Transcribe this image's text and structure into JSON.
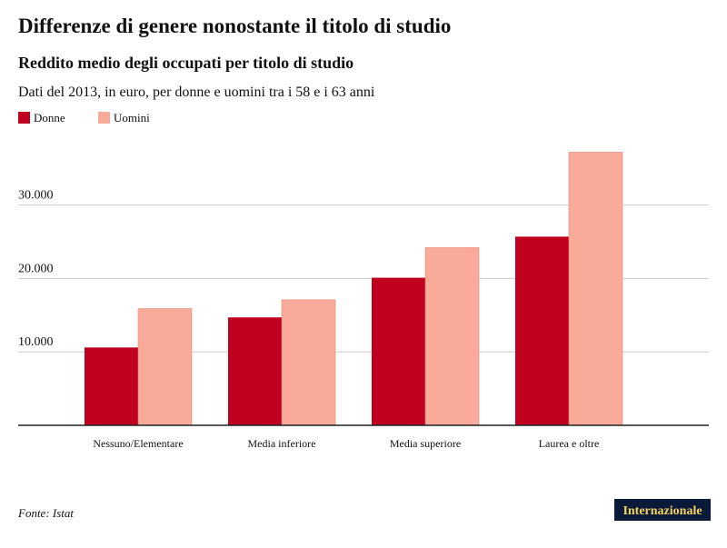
{
  "chart_data": {
    "type": "bar",
    "title": "Differenze di genere nonostante il titolo di studio",
    "subtitle": "Reddito medio degli occupati per titolo di studio",
    "description": "Dati del 2013, in euro, per donne e uomini tra i 58 e i 63 anni",
    "source": "Fonte: Istat",
    "brand": "Internazionale",
    "categories": [
      "Nessuno/Elementare",
      "Media inferiore",
      "Media superiore",
      "Laurea e oltre"
    ],
    "series": [
      {
        "name": "Donne",
        "color": "#c0001f",
        "values": [
          10600,
          14700,
          20100,
          25700
        ]
      },
      {
        "name": "Uomini",
        "color": "#f9aa98",
        "values": [
          15900,
          17100,
          24200,
          37200
        ]
      }
    ],
    "ylim": [
      0,
      38000
    ],
    "yticks": [
      {
        "value": 10000,
        "label": "10.000"
      },
      {
        "value": 20000,
        "label": "20.000"
      },
      {
        "value": 30000,
        "label": "30.000"
      }
    ],
    "grid": true
  }
}
